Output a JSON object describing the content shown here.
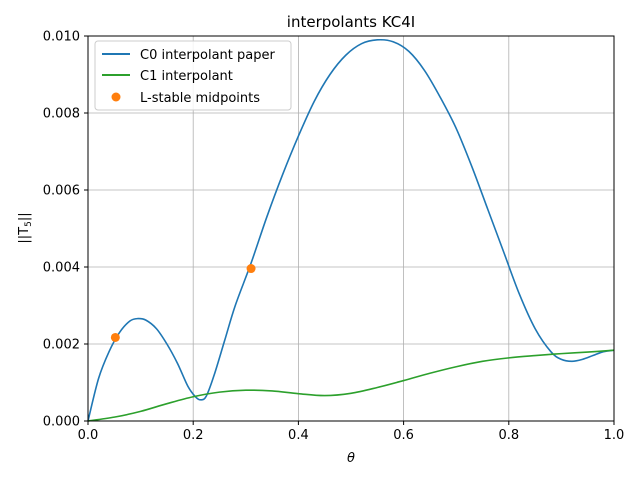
{
  "chart_data": {
    "type": "line",
    "title": "interpolants KC4I",
    "xlabel": "θ",
    "ylabel": "||T5||",
    "ylabel_main": "||T",
    "ylabel_sub": "5",
    "ylabel_end": "||",
    "xlim": [
      0,
      1
    ],
    "ylim": [
      0,
      0.01
    ],
    "grid": true,
    "legend_position": "top-left",
    "x_ticks": [
      {
        "value": 0,
        "label": "0.0"
      },
      {
        "value": 0.2,
        "label": "0.2"
      },
      {
        "value": 0.4,
        "label": "0.4"
      },
      {
        "value": 0.6,
        "label": "0.6"
      },
      {
        "value": 0.8,
        "label": "0.8"
      },
      {
        "value": 1.0,
        "label": "1.0"
      }
    ],
    "y_ticks": [
      {
        "value": 0,
        "label": "0.000"
      },
      {
        "value": 0.002,
        "label": "0.002"
      },
      {
        "value": 0.004,
        "label": "0.004"
      },
      {
        "value": 0.006,
        "label": "0.006"
      },
      {
        "value": 0.008,
        "label": "0.008"
      },
      {
        "value": 0.01,
        "label": "0.010"
      }
    ],
    "series": [
      {
        "name": "C0 interpolant paper",
        "kind": "line",
        "color": "#1f77b4",
        "x": [
          0,
          0.02,
          0.04,
          0.06,
          0.08,
          0.095,
          0.11,
          0.13,
          0.15,
          0.17,
          0.19,
          0.205,
          0.215,
          0.225,
          0.24,
          0.26,
          0.28,
          0.31,
          0.34,
          0.37,
          0.4,
          0.43,
          0.46,
          0.49,
          0.52,
          0.55,
          0.58,
          0.61,
          0.64,
          0.67,
          0.7,
          0.73,
          0.76,
          0.79,
          0.82,
          0.85,
          0.88,
          0.9,
          0.92,
          0.94,
          0.96,
          0.98,
          1.0
        ],
        "y": [
          0,
          0.0011,
          0.0018,
          0.0023,
          0.0026,
          0.00266,
          0.00262,
          0.0024,
          0.002,
          0.0015,
          0.0009,
          0.00062,
          0.00055,
          0.00065,
          0.0012,
          0.0021,
          0.003,
          0.0041,
          0.0053,
          0.0064,
          0.0074,
          0.0083,
          0.009,
          0.0095,
          0.0098,
          0.0099,
          0.00985,
          0.0096,
          0.0091,
          0.0084,
          0.0076,
          0.0066,
          0.0055,
          0.0044,
          0.0033,
          0.0024,
          0.0018,
          0.0016,
          0.00155,
          0.0016,
          0.0017,
          0.0018,
          0.00184
        ]
      },
      {
        "name": "C1 interpolant",
        "kind": "line",
        "color": "#2ca02c",
        "x": [
          0,
          0.05,
          0.1,
          0.15,
          0.2,
          0.25,
          0.3,
          0.35,
          0.4,
          0.45,
          0.5,
          0.55,
          0.6,
          0.65,
          0.7,
          0.75,
          0.8,
          0.85,
          0.9,
          0.95,
          1.0
        ],
        "y": [
          0,
          0.0001,
          0.00025,
          0.00045,
          0.00063,
          0.00075,
          0.0008,
          0.00078,
          0.00071,
          0.00066,
          0.00072,
          0.00087,
          0.00105,
          0.00124,
          0.00141,
          0.00155,
          0.00164,
          0.0017,
          0.00175,
          0.00179,
          0.00184
        ]
      },
      {
        "name": "L-stable midpoints",
        "kind": "scatter",
        "color": "#ff7f0e",
        "x": [
          0.052,
          0.31
        ],
        "y": [
          0.00217,
          0.00396
        ]
      }
    ]
  }
}
